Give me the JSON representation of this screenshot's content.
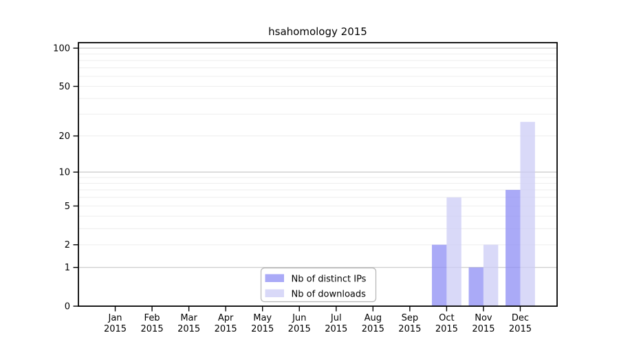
{
  "chart_data": {
    "type": "bar",
    "title": "hsahomology 2015",
    "year": "2015",
    "months": [
      "Jan",
      "Feb",
      "Mar",
      "Apr",
      "May",
      "Jun",
      "Jul",
      "Aug",
      "Sep",
      "Oct",
      "Nov",
      "Dec"
    ],
    "series": [
      {
        "name": "Nb of distinct IPs",
        "color": "#8e8ef4",
        "rendered_color": "#aaaaf5",
        "values": [
          0,
          0,
          0,
          0,
          0,
          0,
          0,
          0,
          0,
          2,
          1,
          7
        ]
      },
      {
        "name": "Nb of downloads",
        "color": "#ccccf6",
        "rendered_color": "#d9d9f8",
        "values": [
          0,
          0,
          0,
          0,
          0,
          0,
          0,
          0,
          0,
          6,
          2,
          26
        ]
      }
    ],
    "bar_alpha": 0.75,
    "y_scale": "log1p",
    "y_ticks": [
      0,
      1,
      2,
      5,
      10,
      20,
      50,
      100
    ],
    "ylim": [
      0,
      110
    ],
    "grid": {
      "orientation": "horizontal",
      "major_lines": [
        1,
        10,
        100
      ],
      "minor_lines": [
        2,
        3,
        4,
        5,
        6,
        7,
        8,
        9,
        20,
        30,
        40,
        50,
        60,
        70,
        80,
        90
      ],
      "major_color": "#c8c8c8",
      "minor_color": "#ededed"
    },
    "legend": {
      "position": "lower-center-inside",
      "entries": [
        "Nb of distinct IPs",
        "Nb of downloads"
      ],
      "border_color": "#b4b4b4",
      "background": "#ffffff"
    },
    "axis_color": "#000000",
    "background": "#ffffff"
  }
}
